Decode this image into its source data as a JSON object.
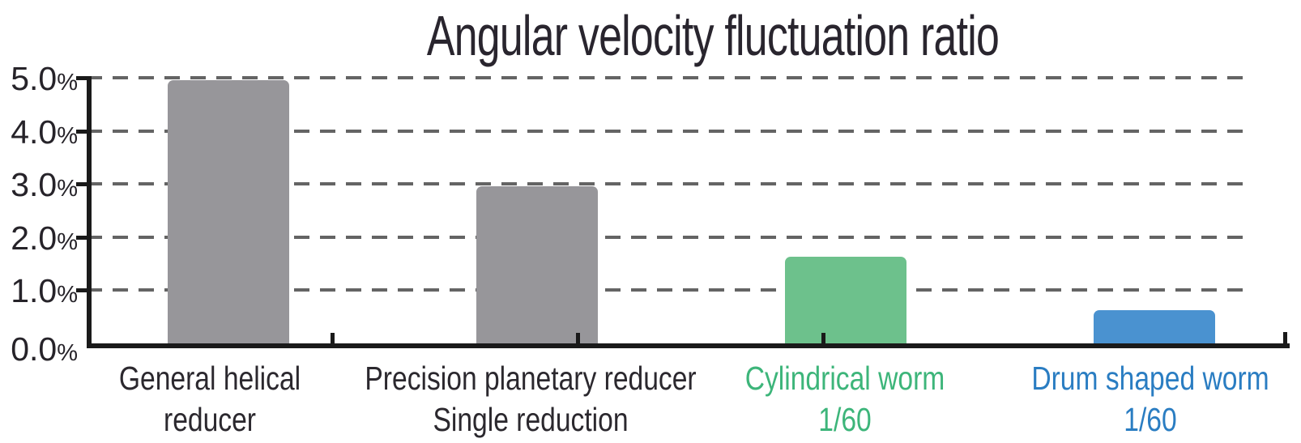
{
  "chart_data": {
    "type": "bar",
    "title": "Angular velocity fluctuation ratio",
    "categories": [
      "General helical\nreducer",
      "Precision planetary reducer\nSingle reduction",
      "Cylindrical worm\n1/60",
      "Drum shaped worm\n1/60"
    ],
    "values": [
      5.0,
      3.0,
      1.67,
      0.67
    ],
    "unit": "%",
    "bar_colors": [
      "#97969A",
      "#97969A",
      "#6DC18C",
      "#4A92D0"
    ],
    "label_colors": [
      "#2B282E",
      "#2B282E",
      "#3DB57A",
      "#2A7DC2"
    ],
    "ytick_labels": [
      "0.0%",
      "1.0%",
      "2.0%",
      "3.0%",
      "4.0%",
      "5.0%"
    ],
    "ylim": [
      0,
      5
    ],
    "ytick_step": 1.0,
    "xlabel": "",
    "ylabel": "",
    "grid": "horizontal-dashed",
    "legend": "none",
    "colors": {
      "axis": "#1A1A1A",
      "gridline": "#646464",
      "title_text": "#29252E",
      "gray_bar": "#97969A",
      "green_bar": "#6DC18C",
      "blue_bar": "#4A92D0",
      "green_label": "#3DB57A",
      "blue_label": "#2A7DC2"
    }
  }
}
